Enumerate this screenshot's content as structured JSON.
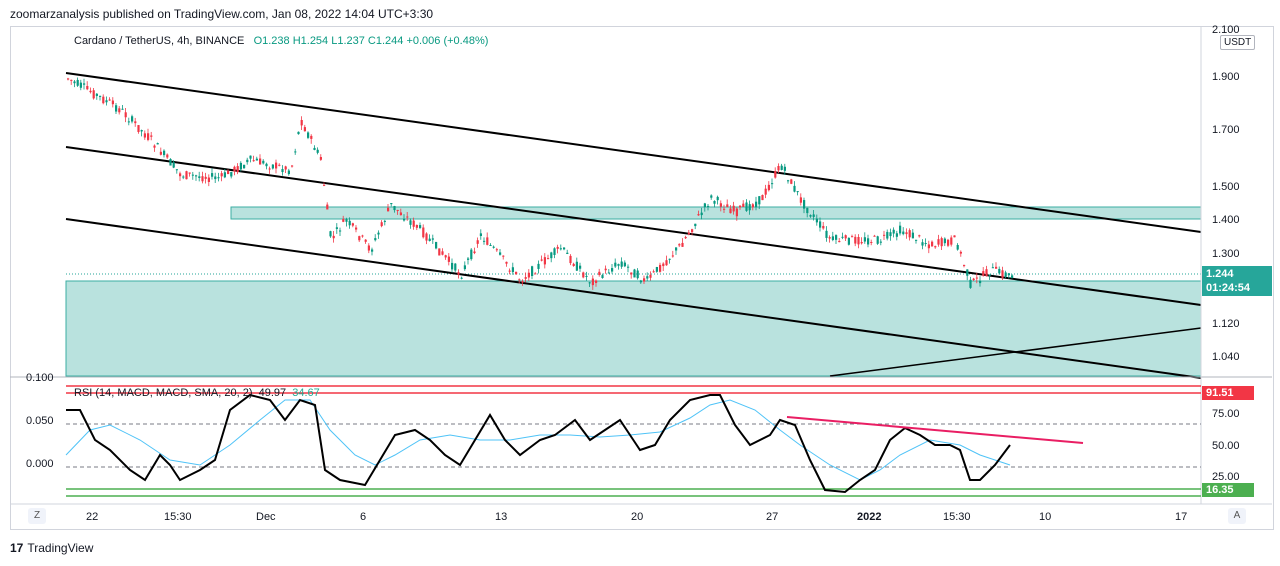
{
  "header": {
    "publish_line": "zoomarzanalysis published on TradingView.com, Jan 08, 2022 14:04 UTC+3:30"
  },
  "symbol_legend": {
    "title": "Cardano / TetherUS, 4h, BINANCE",
    "ohlc": "O1.238  H1.254  L1.237  C1.244  +0.006 (+0.48%)"
  },
  "rsi_legend": {
    "title": "RSI (14, MACD, MACD, SMA, 20, 2)",
    "value1": "49.97",
    "value2": "34.67"
  },
  "currency_badge": "USDT",
  "price_axis": [
    {
      "label": "2.100",
      "value": 2.1
    },
    {
      "label": "1.900",
      "value": 1.9
    },
    {
      "label": "1.700",
      "value": 1.7
    },
    {
      "label": "1.500",
      "value": 1.5
    },
    {
      "label": "1.400",
      "value": 1.4
    },
    {
      "label": "1.300",
      "value": 1.3
    },
    {
      "label": "1.120",
      "value": 1.12
    },
    {
      "label": "1.040",
      "value": 1.04
    }
  ],
  "last_price": {
    "price": "1.244",
    "countdown": "01:24:54",
    "color": "#26a69a"
  },
  "rsi_axis": [
    {
      "label": "75.00",
      "value": 75
    },
    {
      "label": "50.00",
      "value": 50
    },
    {
      "label": "25.00",
      "value": 25
    }
  ],
  "rsi_left_axis": [
    "0.100",
    "0.050",
    "0.000"
  ],
  "rsi_badges": {
    "upper": "91.51",
    "lower": "16.35",
    "upper_color": "#f23645",
    "lower_color": "#4caf50"
  },
  "time_axis": [
    {
      "label": "22",
      "bold": false
    },
    {
      "label": "15:30",
      "bold": false
    },
    {
      "label": "Dec",
      "bold": false
    },
    {
      "label": "6",
      "bold": false
    },
    {
      "label": "13",
      "bold": false
    },
    {
      "label": "20",
      "bold": false
    },
    {
      "label": "27",
      "bold": false
    },
    {
      "label": "2022",
      "bold": true
    },
    {
      "label": "15:30",
      "bold": false
    },
    {
      "label": "10",
      "bold": false
    },
    {
      "label": "17",
      "bold": false
    }
  ],
  "buttons": {
    "left": "Z",
    "right": "A"
  },
  "footer": {
    "logo_glyph": "17",
    "brand": "TradingView"
  },
  "colors": {
    "up": "#089981",
    "down": "#f23645",
    "zone": "#b2dfdb",
    "zone_border": "#26a69a",
    "rsi_line": "#000000",
    "rsi_ma": "#4fc3f7",
    "divergence": "#e91e63"
  }
}
